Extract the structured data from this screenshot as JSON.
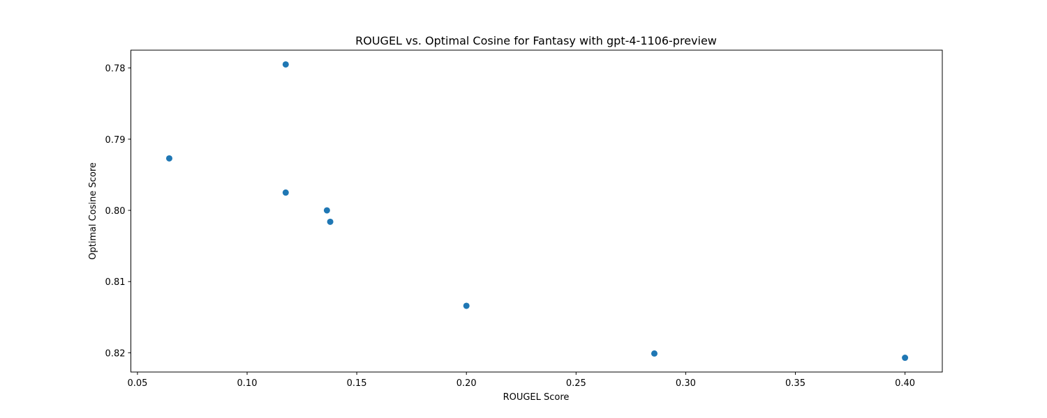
{
  "chart_data": {
    "type": "scatter",
    "title": "ROUGEL vs. Optimal Cosine for Fantasy with gpt-4-1106-preview",
    "xlabel": "ROUGEL Score",
    "ylabel": "Optimal Cosine Score",
    "xlim": [
      0.047,
      0.417
    ],
    "ylim": [
      0.7775,
      0.8227
    ],
    "y_inverted": true,
    "grid": false,
    "legend": "none",
    "marker_color": "#1f77b4",
    "x_ticks": [
      {
        "value": 0.05,
        "label": "0.05"
      },
      {
        "value": 0.1,
        "label": "0.10"
      },
      {
        "value": 0.15,
        "label": "0.15"
      },
      {
        "value": 0.2,
        "label": "0.20"
      },
      {
        "value": 0.25,
        "label": "0.25"
      },
      {
        "value": 0.3,
        "label": "0.30"
      },
      {
        "value": 0.35,
        "label": "0.35"
      },
      {
        "value": 0.4,
        "label": "0.40"
      }
    ],
    "y_ticks": [
      {
        "value": 0.78,
        "label": "0.78"
      },
      {
        "value": 0.79,
        "label": "0.79"
      },
      {
        "value": 0.8,
        "label": "0.80"
      },
      {
        "value": 0.81,
        "label": "0.81"
      },
      {
        "value": 0.82,
        "label": "0.82"
      }
    ],
    "points": [
      {
        "x": 0.1176,
        "y": 0.7795
      },
      {
        "x": 0.0645,
        "y": 0.7927
      },
      {
        "x": 0.1176,
        "y": 0.7975
      },
      {
        "x": 0.1364,
        "y": 0.8
      },
      {
        "x": 0.1379,
        "y": 0.8016
      },
      {
        "x": 0.2,
        "y": 0.8134
      },
      {
        "x": 0.2857,
        "y": 0.8201
      },
      {
        "x": 0.4,
        "y": 0.8207
      }
    ]
  }
}
